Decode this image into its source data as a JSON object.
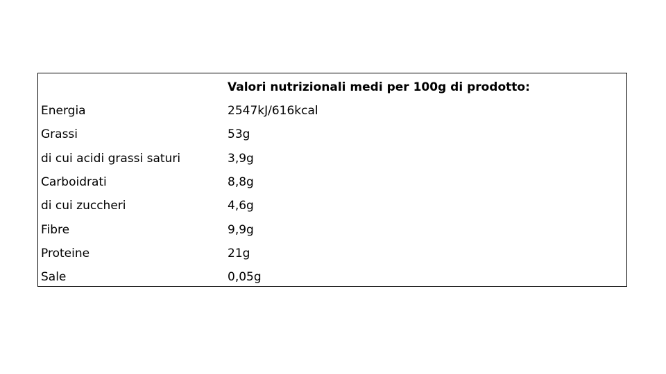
{
  "table": {
    "header": [
      "",
      "Valori nutrizionali medi per 100g di prodotto:"
    ],
    "rows": [
      [
        "Energia",
        "2547kJ/616kcal"
      ],
      [
        "Grassi",
        "53g"
      ],
      [
        "di cui acidi grassi saturi",
        "3,9g"
      ],
      [
        "Carboidrati",
        "8,8g"
      ],
      [
        "di cui zuccheri",
        "4,6g"
      ],
      [
        "Fibre",
        "9,9g"
      ],
      [
        "Proteine",
        "21g"
      ],
      [
        "Sale",
        "0,05g"
      ]
    ]
  }
}
